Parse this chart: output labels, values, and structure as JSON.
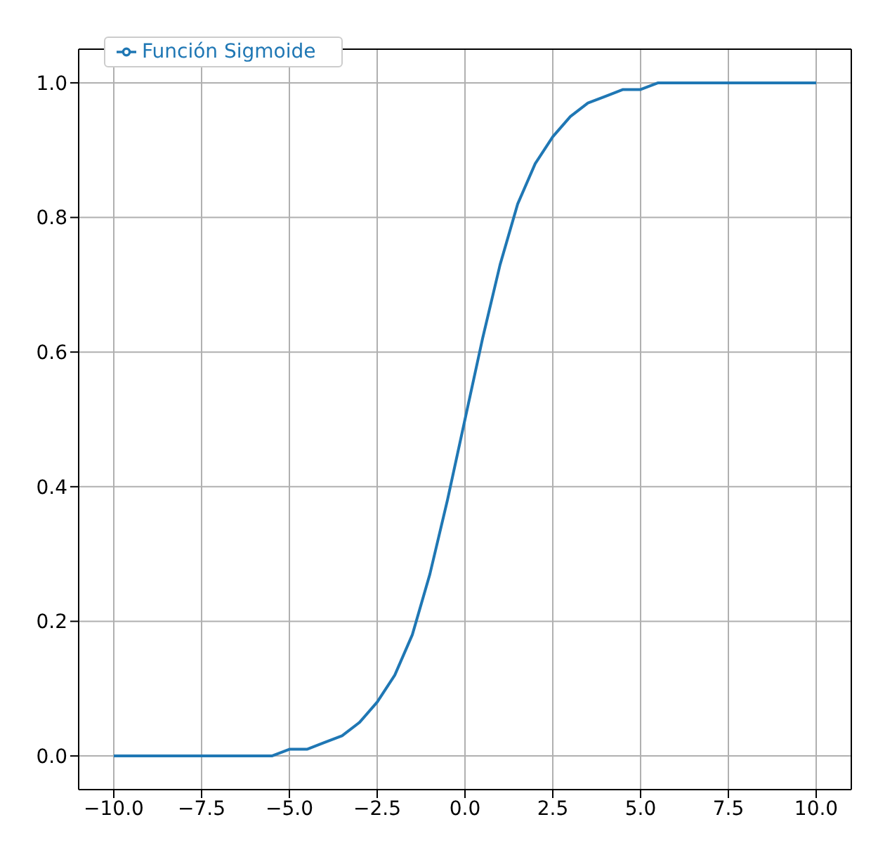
{
  "chart_data": {
    "type": "line",
    "x": [
      -10,
      -8,
      -6,
      -5.5,
      -5,
      -4.5,
      -4,
      -3.5,
      -3,
      -2.5,
      -2,
      -1.5,
      -1,
      -0.5,
      0,
      0.5,
      1,
      1.5,
      2,
      2.5,
      3,
      3.5,
      4,
      4.5,
      5,
      5.5,
      6,
      8,
      10
    ],
    "series": [
      {
        "name": "Función Sigmoide",
        "color": "#1f77b4",
        "values": [
          0,
          0,
          0,
          0,
          0.01,
          0.01,
          0.02,
          0.03,
          0.05,
          0.08,
          0.12,
          0.18,
          0.27,
          0.38,
          0.5,
          0.62,
          0.73,
          0.82,
          0.88,
          0.92,
          0.95,
          0.97,
          0.98,
          0.99,
          0.99,
          1,
          1,
          1,
          1
        ]
      }
    ],
    "xlim": [
      -11,
      11
    ],
    "xticks": [
      {
        "value": -10,
        "label": "−10.0"
      },
      {
        "value": -7.5,
        "label": "−7.5"
      },
      {
        "value": -5,
        "label": "−5.0"
      },
      {
        "value": -2.5,
        "label": "−2.5"
      },
      {
        "value": 0,
        "label": "0.0"
      },
      {
        "value": 2.5,
        "label": "2.5"
      },
      {
        "value": 5,
        "label": "5.0"
      },
      {
        "value": 7.5,
        "label": "7.5"
      },
      {
        "value": 10,
        "label": "10.0"
      }
    ],
    "ylim": [
      -0.05,
      1.05
    ],
    "yticks": [
      {
        "value": 0,
        "label": "0.0"
      },
      {
        "value": 0.2,
        "label": "0.2"
      },
      {
        "value": 0.4,
        "label": "0.4"
      },
      {
        "value": 0.6,
        "label": "0.6"
      },
      {
        "value": 0.8,
        "label": "0.8"
      },
      {
        "value": 1,
        "label": "1.0"
      }
    ],
    "grid": true,
    "legend": "top left",
    "marker": "none",
    "line_style": "solid"
  }
}
